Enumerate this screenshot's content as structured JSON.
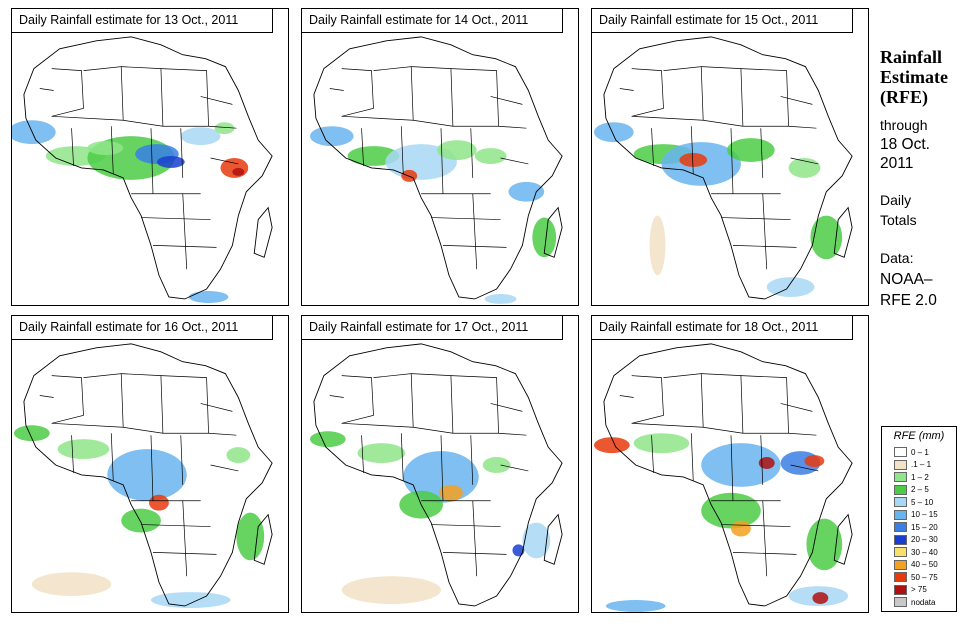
{
  "panels": [
    {
      "title": "Daily Rainfall estimate for  13 Oct., 2011"
    },
    {
      "title": "Daily Rainfall estimate for  14 Oct., 2011"
    },
    {
      "title": "Daily Rainfall estimate for  15 Oct., 2011"
    },
    {
      "title": "Daily Rainfall estimate for  16 Oct., 2011"
    },
    {
      "title": "Daily Rainfall estimate for  17 Oct., 2011"
    },
    {
      "title": "Daily Rainfall estimate for  18 Oct., 2011"
    }
  ],
  "side": {
    "title_1": "Rainfall",
    "title_2": "Estimate",
    "title_3": "(RFE)",
    "through": "through",
    "date_1": "18 Oct.",
    "date_2": "2011",
    "daily": "Daily",
    "totals": "Totals",
    "data_label": "Data:",
    "source_1": "NOAA–",
    "source_2": "RFE 2.0"
  },
  "legend": {
    "title": "RFE (mm)",
    "items": [
      {
        "label": "0 – 1",
        "color": "#ffffff"
      },
      {
        "label": ".1 – 1",
        "color": "#f2e2c6"
      },
      {
        "label": "1 – 2",
        "color": "#8fe58a"
      },
      {
        "label": "2 – 5",
        "color": "#4ccc46"
      },
      {
        "label": "5 – 10",
        "color": "#a8d8f4"
      },
      {
        "label": "10 – 15",
        "color": "#68b4ee"
      },
      {
        "label": "15 – 20",
        "color": "#3a7fe4"
      },
      {
        "label": "20 – 30",
        "color": "#1a3fd0"
      },
      {
        "label": "30 – 40",
        "color": "#f8e06a"
      },
      {
        "label": "40 – 50",
        "color": "#f4a020"
      },
      {
        "label": "50 – 75",
        "color": "#e83a0c"
      },
      {
        "label": "> 75",
        "color": "#b01010"
      },
      {
        "label": "nodata",
        "color": "#c8c8c8"
      }
    ]
  }
}
